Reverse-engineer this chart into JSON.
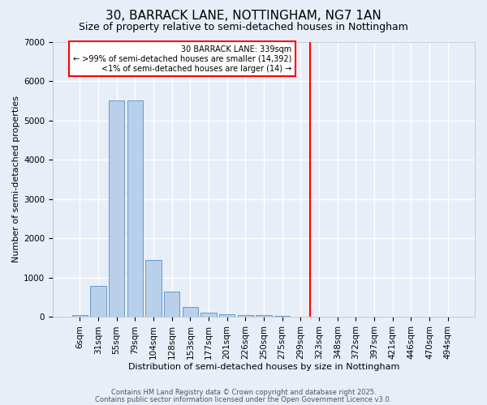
{
  "title": "30, BARRACK LANE, NOTTINGHAM, NG7 1AN",
  "subtitle": "Size of property relative to semi-detached houses in Nottingham",
  "xlabel": "Distribution of semi-detached houses by size in Nottingham",
  "ylabel": "Number of semi-detached properties",
  "categories": [
    "6sqm",
    "31sqm",
    "55sqm",
    "79sqm",
    "104sqm",
    "128sqm",
    "153sqm",
    "177sqm",
    "201sqm",
    "226sqm",
    "250sqm",
    "275sqm",
    "299sqm",
    "323sqm",
    "348sqm",
    "372sqm",
    "397sqm",
    "421sqm",
    "446sqm",
    "470sqm",
    "494sqm"
  ],
  "values": [
    50,
    800,
    5500,
    5500,
    1450,
    650,
    250,
    120,
    80,
    50,
    50,
    30,
    0,
    0,
    0,
    0,
    0,
    0,
    0,
    0,
    0
  ],
  "bar_color": "#b8d0ea",
  "bar_edge_color": "#6699cc",
  "vline_index": 13,
  "vline_color": "red",
  "annotation_text_line1": "30 BARRACK LANE: 339sqm",
  "annotation_text_line2": "← >99% of semi-detached houses are smaller (14,392)",
  "annotation_text_line3": "<1% of semi-detached houses are larger (14) →",
  "ylim": [
    0,
    7000
  ],
  "yticks": [
    0,
    1000,
    2000,
    3000,
    4000,
    5000,
    6000,
    7000
  ],
  "background_color": "#e8eef7",
  "grid_color": "white",
  "title_fontsize": 11,
  "subtitle_fontsize": 9,
  "axis_fontsize": 8,
  "tick_fontsize": 7.5,
  "footer_line1": "Contains HM Land Registry data © Crown copyright and database right 2025.",
  "footer_line2": "Contains public sector information licensed under the Open Government Licence v3.0."
}
